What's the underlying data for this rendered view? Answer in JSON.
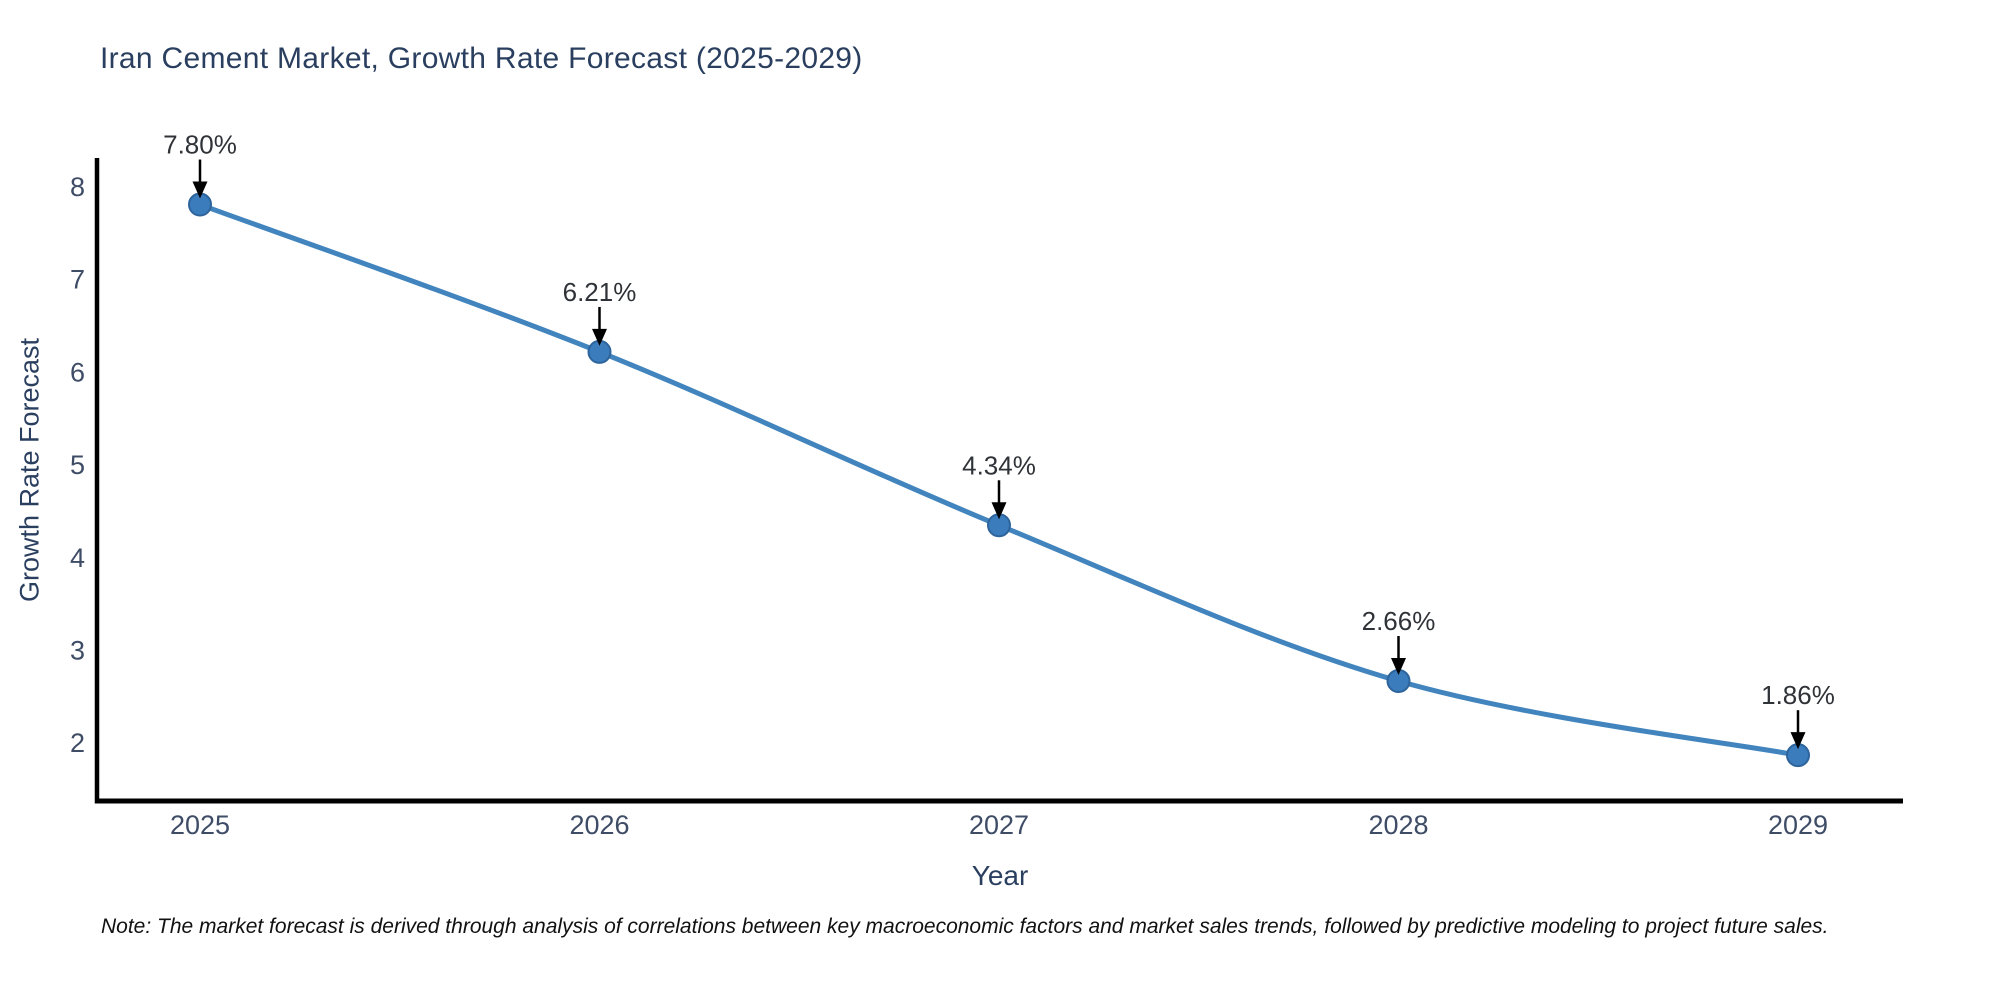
{
  "chart_data": {
    "type": "line",
    "title": "Iran Cement Market, Growth Rate Forecast (2025-2029)",
    "xlabel": "Year",
    "ylabel": "Growth Rate Forecast",
    "categories": [
      "2025",
      "2026",
      "2027",
      "2028",
      "2029"
    ],
    "values": [
      7.8,
      6.21,
      4.34,
      2.66,
      1.86
    ],
    "point_labels": [
      "7.80%",
      "6.21%",
      "4.34%",
      "2.66%",
      "1.86%"
    ],
    "yticks": [
      8,
      7,
      6,
      5,
      4,
      3,
      2
    ],
    "ylim": [
      1.38,
      8.28
    ],
    "grid": false,
    "legend": false,
    "line_shape": "spline",
    "line_color": "#4284bd",
    "marker_color": "#3b7cbd",
    "marker_edge_color": "#2e649c",
    "arrow_color": "#000000",
    "axis_color": "#000000",
    "title_color": "#2a3f5f",
    "tick_color": "#3e4c66",
    "annotation_color": "#2f3338",
    "note": "Note: The market forecast is derived through analysis of correlations between key macroeconomic factors and market sales trends, followed by predictive modeling to project future sales."
  }
}
